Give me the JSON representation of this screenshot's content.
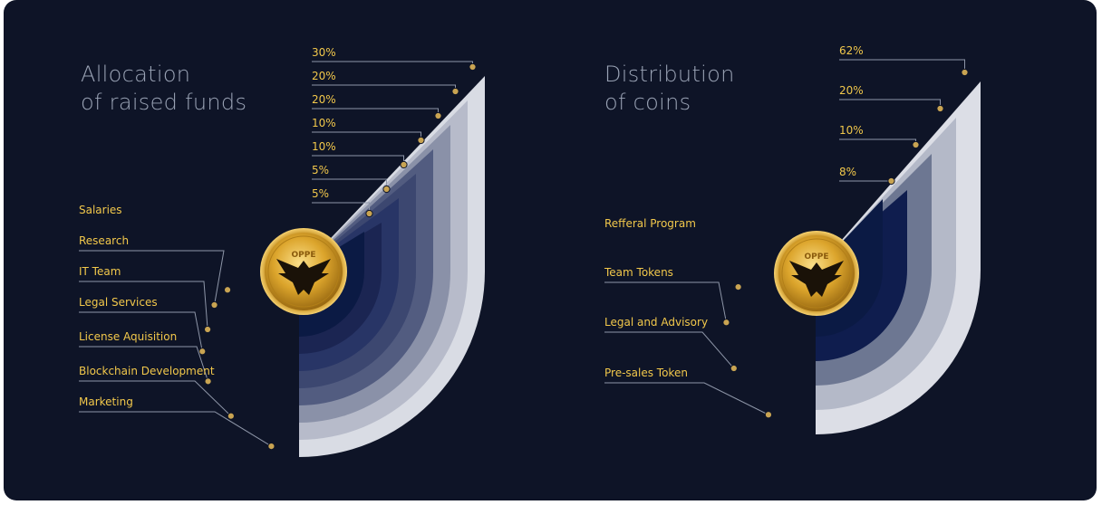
{
  "colors": {
    "background": "#0e1427",
    "accent": "#f2c84b",
    "leader_line": "#8e96a8",
    "title": "#9aa3b5",
    "coin_gold": "#d9a62a"
  },
  "coin_icon": "eagle-coin-logo",
  "coin_text": "OPPE",
  "chart_data": [
    {
      "type": "nested-arc-bar",
      "title": "Allocation of raised funds",
      "title_lines": [
        "Allocation",
        "of raised funds"
      ],
      "categories": [
        "Salaries",
        "Research",
        "IT Team",
        "Legal Services",
        "License Aquisition",
        "Blockchain Development",
        "Marketing"
      ],
      "values": [
        5,
        5,
        10,
        10,
        20,
        20,
        30
      ],
      "value_labels": [
        "5%",
        "5%",
        "10%",
        "10%",
        "20%",
        "20%",
        "30%"
      ]
    },
    {
      "type": "nested-arc-bar",
      "title": "Distribution of coins",
      "title_lines": [
        "Distribution",
        "of coins"
      ],
      "categories": [
        "Refferal Program",
        "Team Tokens",
        "Legal and Advisory",
        "Pre-sales Token"
      ],
      "values": [
        8,
        10,
        20,
        62
      ],
      "value_labels": [
        "8%",
        "10%",
        "20%",
        "62%"
      ]
    }
  ]
}
